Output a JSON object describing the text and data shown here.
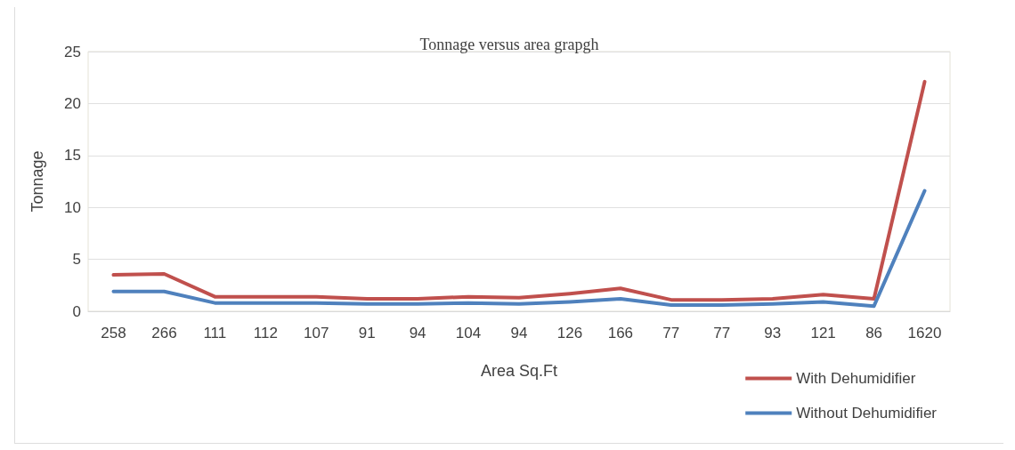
{
  "chart_data": {
    "type": "line",
    "title": "Tonnage versus area grapgh",
    "xlabel": "Area Sq.Ft",
    "ylabel": "Tonnage",
    "categories": [
      "258",
      "266",
      "111",
      "112",
      "107",
      "91",
      "94",
      "104",
      "94",
      "126",
      "166",
      "77",
      "77",
      "93",
      "121",
      "86",
      "1620"
    ],
    "series": [
      {
        "name": "With Dehumidifier",
        "color": "#c0504d",
        "values": [
          3.5,
          3.6,
          1.4,
          1.4,
          1.4,
          1.2,
          1.2,
          1.4,
          1.3,
          1.7,
          2.2,
          1.1,
          1.1,
          1.2,
          1.6,
          1.2,
          22.1
        ]
      },
      {
        "name": "Without Dehumidifier",
        "color": "#4f81bd",
        "values": [
          1.9,
          1.9,
          0.8,
          0.8,
          0.8,
          0.7,
          0.7,
          0.8,
          0.7,
          0.9,
          1.2,
          0.6,
          0.6,
          0.7,
          0.9,
          0.5,
          11.6
        ]
      }
    ],
    "ylim": [
      0,
      25
    ],
    "yticks": [
      0,
      5,
      10,
      15,
      20,
      25
    ],
    "grid": "y",
    "legend": "bottom right",
    "marker": "none",
    "line_style": "solid"
  }
}
